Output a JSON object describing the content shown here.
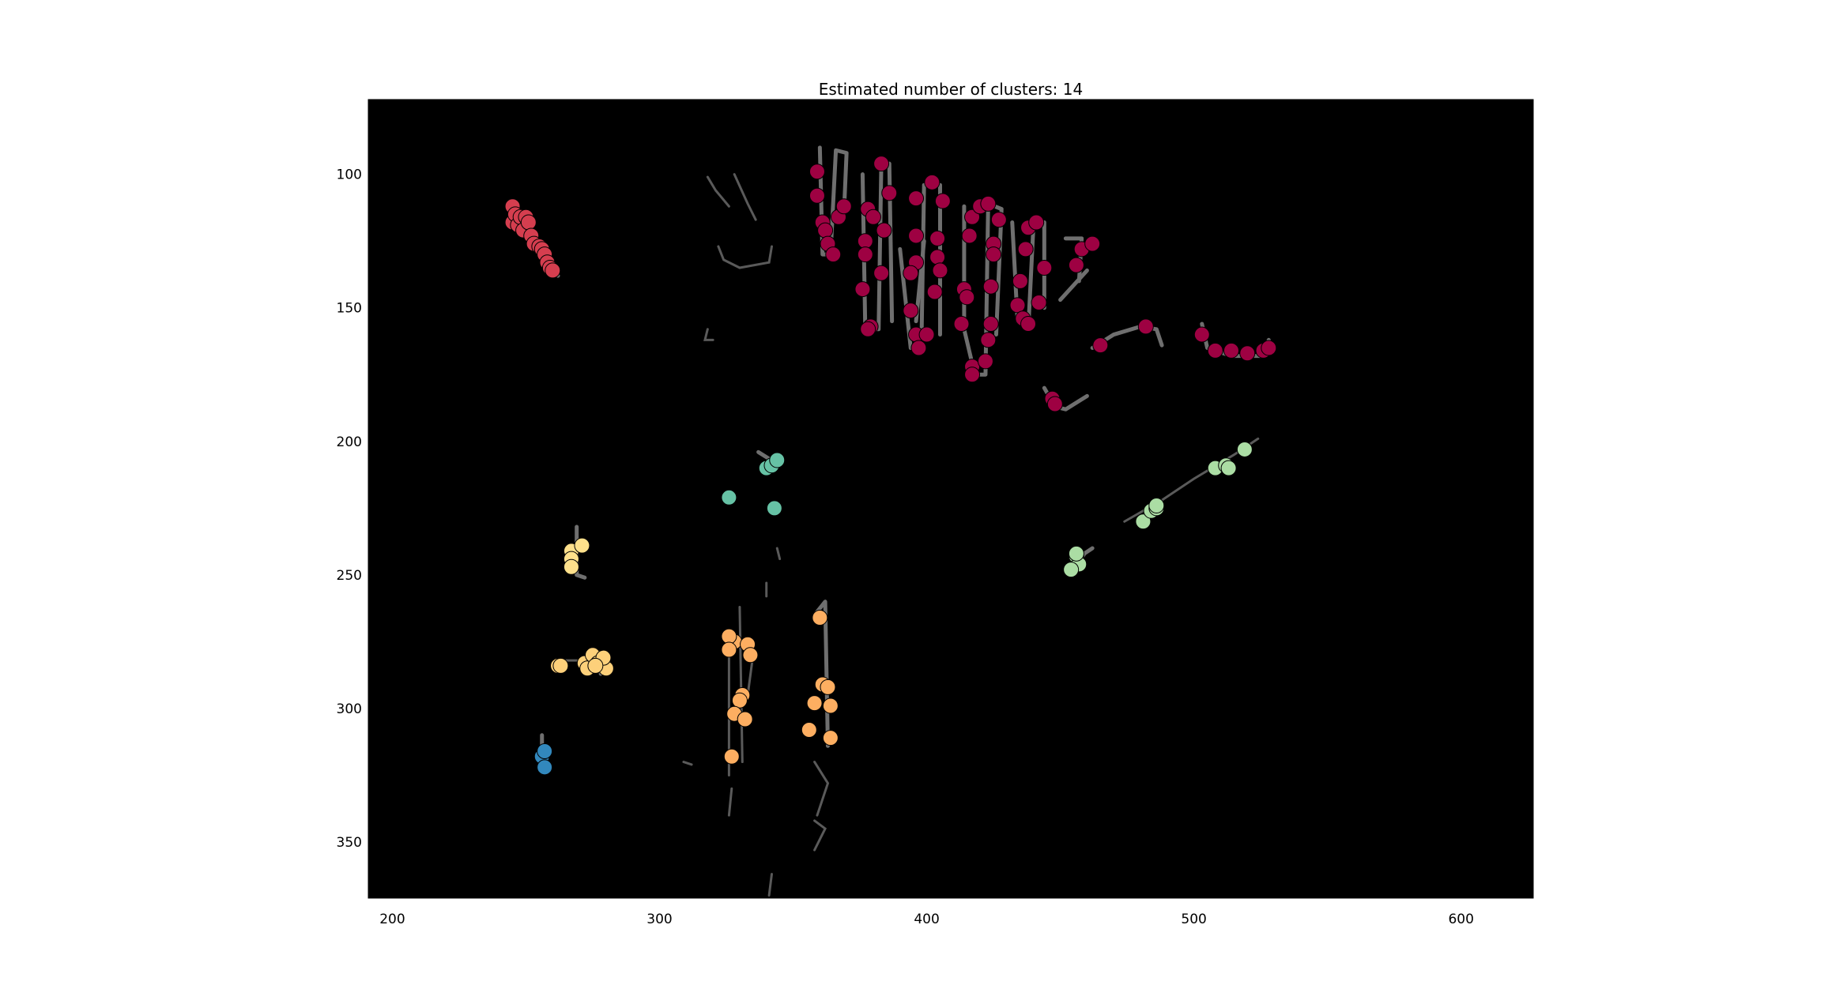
{
  "chart_data": {
    "type": "scatter",
    "title": "Estimated number of clusters: 14",
    "xlabel": "",
    "ylabel": "",
    "xlim": [
      191,
      627
    ],
    "ylim": [
      371,
      72
    ],
    "y_inverted": true,
    "x_ticks": [
      200,
      300,
      400,
      500,
      600
    ],
    "y_ticks": [
      100,
      150,
      200,
      250,
      300,
      350
    ],
    "background": "#000000",
    "background_edges_color": "#6f6f6f",
    "grid": false,
    "legend": "none",
    "series": [
      {
        "color": "#9e0142",
        "points": [
          [
            359,
            99
          ],
          [
            359,
            108
          ],
          [
            361,
            118
          ],
          [
            362,
            121
          ],
          [
            363,
            126
          ],
          [
            365,
            130
          ],
          [
            367,
            116
          ],
          [
            369,
            112
          ],
          [
            383,
            96
          ],
          [
            384,
            121
          ],
          [
            386,
            107
          ],
          [
            378,
            113
          ],
          [
            380,
            116
          ],
          [
            377,
            125
          ],
          [
            377,
            130
          ],
          [
            376,
            143
          ],
          [
            379,
            157
          ],
          [
            378,
            158
          ],
          [
            383,
            137
          ],
          [
            394,
            151
          ],
          [
            396,
            160
          ],
          [
            397,
            165
          ],
          [
            396,
            123
          ],
          [
            396,
            133
          ],
          [
            394,
            137
          ],
          [
            396,
            109
          ],
          [
            402,
            103
          ],
          [
            404,
            124
          ],
          [
            404,
            131
          ],
          [
            403,
            144
          ],
          [
            406,
            110
          ],
          [
            405,
            136
          ],
          [
            400,
            160
          ],
          [
            414,
            143
          ],
          [
            415,
            146
          ],
          [
            413,
            156
          ],
          [
            417,
            172
          ],
          [
            417,
            175
          ],
          [
            417,
            116
          ],
          [
            416,
            123
          ],
          [
            420,
            112
          ],
          [
            423,
            111
          ],
          [
            423,
            162
          ],
          [
            422,
            170
          ],
          [
            424,
            142
          ],
          [
            425,
            126
          ],
          [
            425,
            130
          ],
          [
            424,
            156
          ],
          [
            427,
            117
          ],
          [
            434,
            149
          ],
          [
            435,
            140
          ],
          [
            437,
            128
          ],
          [
            436,
            154
          ],
          [
            438,
            156
          ],
          [
            438,
            120
          ],
          [
            441,
            118
          ],
          [
            442,
            148
          ],
          [
            444,
            135
          ],
          [
            456,
            134
          ],
          [
            458,
            128
          ],
          [
            462,
            126
          ],
          [
            465,
            164
          ],
          [
            482,
            157
          ],
          [
            447,
            184
          ],
          [
            448,
            186
          ],
          [
            503,
            160
          ],
          [
            508,
            166
          ],
          [
            514,
            166
          ],
          [
            520,
            167
          ],
          [
            526,
            166
          ],
          [
            528,
            165
          ]
        ]
      },
      {
        "color": "#d53e4f",
        "points": [
          [
            245,
            112
          ],
          [
            245,
            118
          ],
          [
            246,
            115
          ],
          [
            247,
            119
          ],
          [
            248,
            116
          ],
          [
            249,
            121
          ],
          [
            250,
            116
          ],
          [
            251,
            118
          ],
          [
            252,
            123
          ],
          [
            253,
            126
          ],
          [
            255,
            127
          ],
          [
            256,
            128
          ],
          [
            257,
            130
          ],
          [
            258,
            133
          ],
          [
            259,
            135
          ],
          [
            260,
            136
          ]
        ]
      },
      {
        "color": "#66c2a5",
        "points": [
          [
            340,
            210
          ],
          [
            342,
            209
          ],
          [
            344,
            207
          ],
          [
            326,
            221
          ],
          [
            343,
            225
          ]
        ]
      },
      {
        "color": "#abdda4",
        "points": [
          [
            456,
            243
          ],
          [
            457,
            246
          ],
          [
            454,
            248
          ],
          [
            456,
            242
          ],
          [
            481,
            230
          ],
          [
            484,
            226
          ],
          [
            486,
            225
          ],
          [
            486,
            224
          ],
          [
            508,
            210
          ],
          [
            512,
            209
          ],
          [
            513,
            210
          ],
          [
            519,
            203
          ]
        ]
      },
      {
        "color": "#fee08b",
        "points": [
          [
            267,
            241
          ],
          [
            271,
            239
          ],
          [
            267,
            244
          ],
          [
            267,
            247
          ]
        ]
      },
      {
        "color": "#fdd07a",
        "points": [
          [
            262,
            284
          ],
          [
            263,
            284
          ],
          [
            272,
            283
          ],
          [
            273,
            285
          ],
          [
            275,
            280
          ],
          [
            277,
            283
          ],
          [
            279,
            283
          ],
          [
            280,
            285
          ],
          [
            279,
            281
          ],
          [
            276,
            284
          ]
        ]
      },
      {
        "color": "#fdae61",
        "points": [
          [
            360,
            266
          ],
          [
            328,
            275
          ],
          [
            333,
            276
          ],
          [
            326,
            273
          ],
          [
            326,
            278
          ],
          [
            334,
            280
          ],
          [
            361,
            291
          ],
          [
            363,
            292
          ],
          [
            331,
            295
          ],
          [
            330,
            297
          ],
          [
            328,
            302
          ],
          [
            332,
            304
          ],
          [
            358,
            298
          ],
          [
            364,
            299
          ],
          [
            356,
            308
          ],
          [
            364,
            311
          ],
          [
            327,
            318
          ]
        ]
      },
      {
        "color": "#3288bd",
        "points": [
          [
            256,
            318
          ],
          [
            257,
            316
          ],
          [
            257,
            322
          ]
        ]
      }
    ]
  }
}
